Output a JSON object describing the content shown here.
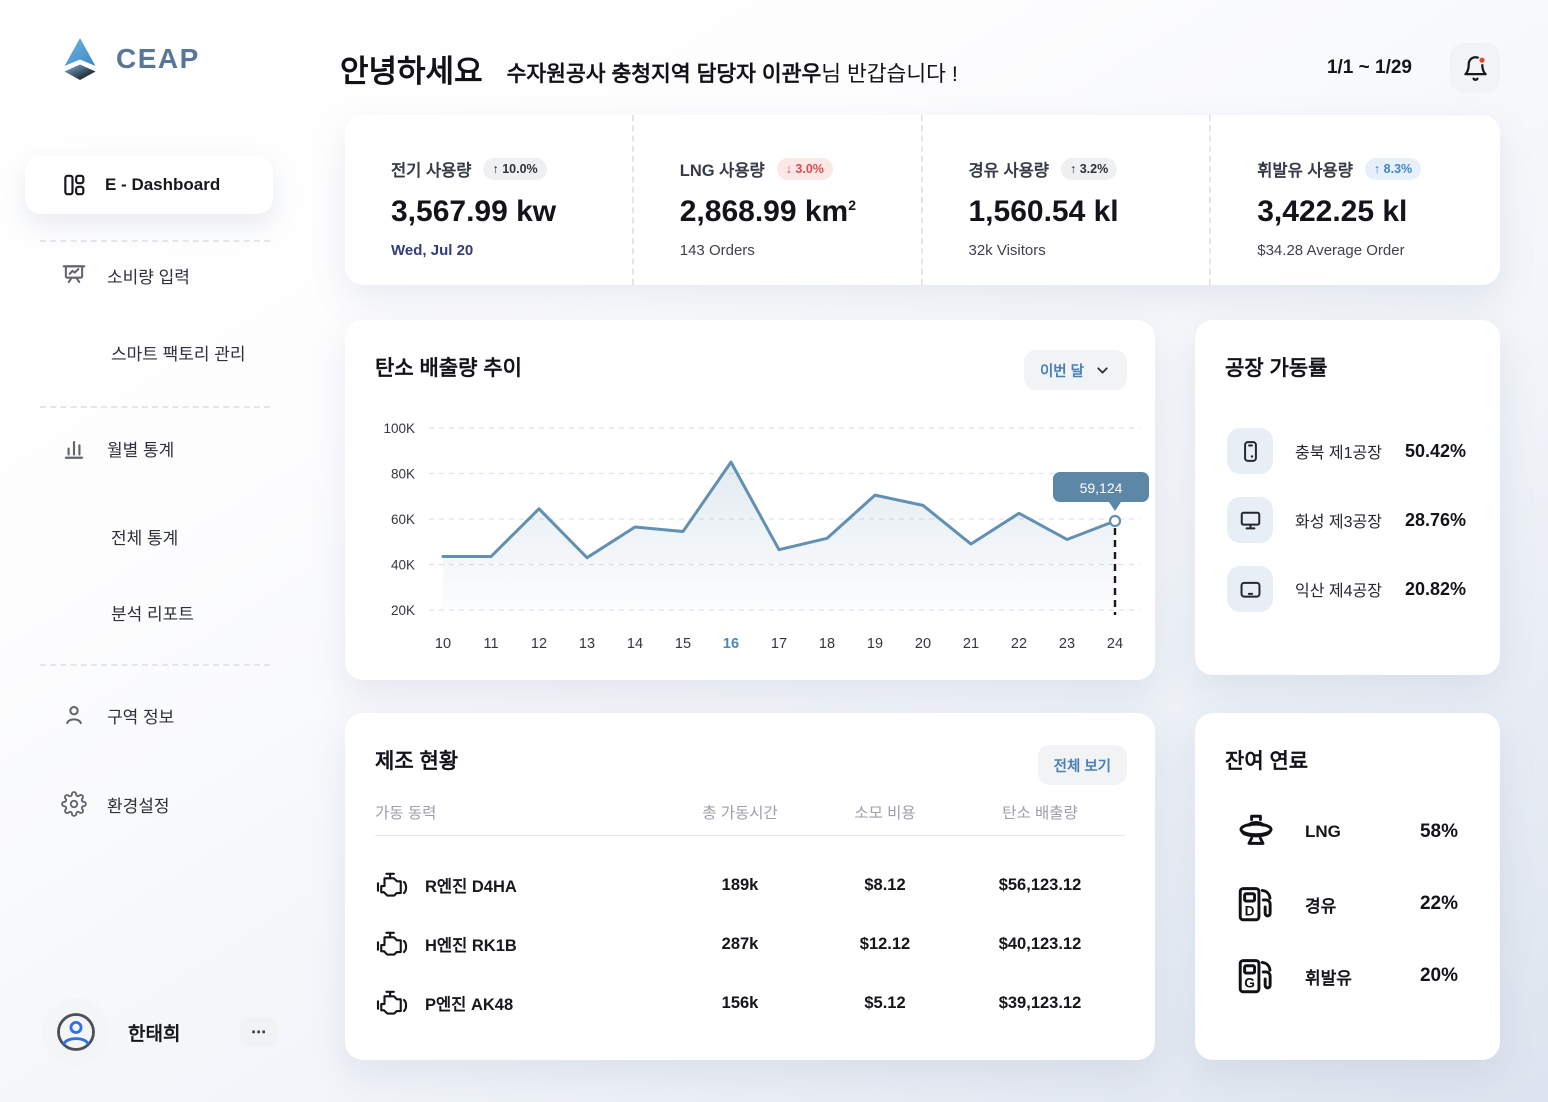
{
  "brand": {
    "name": "CEAP"
  },
  "header": {
    "greeting": "안녕하세요",
    "welcome_strong": "수자원공사 충청지역 담당자 이관우",
    "welcome_rest": "님 반갑습니다 !",
    "date_range": "1/1 ~ 1/29"
  },
  "sidebar": {
    "items": [
      {
        "label": "E - Dashboard",
        "icon": "dashboard-icon",
        "active": true
      },
      {
        "label": "소비량 입력",
        "icon": "presentation-chart-icon"
      },
      {
        "label": "스마트 팩토리 관리"
      },
      {
        "label": "월별 통계",
        "icon": "bar-chart-icon"
      },
      {
        "label": "전체 통계"
      },
      {
        "label": "분석 리포트"
      },
      {
        "label": "구역 정보",
        "icon": "person-icon"
      },
      {
        "label": "환경설정",
        "icon": "gear-icon"
      }
    ],
    "user": {
      "name": "한태희",
      "menu_label": "⋯"
    }
  },
  "stats": {
    "cards": [
      {
        "label": "전기 사용량",
        "badge": "↑ 10.0%",
        "value": "3,567.99 kw",
        "sub": "Wed, Jul 20"
      },
      {
        "label": "LNG 사용량",
        "badge": "↓ 3.0%",
        "value": "2,868.99 km",
        "unit_sup": "2",
        "sub": "143 Orders"
      },
      {
        "label": "경유 사용량",
        "badge": "↑ 3.2%",
        "value": "1,560.54 kl",
        "sub": "32k Visitors"
      },
      {
        "label": "휘발유 사용량",
        "badge": "↑ 8.3%",
        "value": "3,422.25 kl",
        "sub": "$34.28 Average Order"
      }
    ]
  },
  "chart_data": {
    "type": "line",
    "title": "탄소 배출량 추이",
    "period_selector": "이번 달",
    "x": [
      "10",
      "11",
      "12",
      "13",
      "14",
      "15",
      "16",
      "17",
      "18",
      "19",
      "20",
      "21",
      "22",
      "23",
      "24"
    ],
    "values": [
      43500,
      43500,
      64500,
      43000,
      56500,
      54500,
      85000,
      46500,
      51500,
      70500,
      66000,
      49000,
      62500,
      51000,
      59124
    ],
    "y_ticks": [
      "100K",
      "80K",
      "60K",
      "40K",
      "20K"
    ],
    "y_tick_values": [
      100000,
      80000,
      60000,
      40000,
      20000
    ],
    "ylim": [
      20000,
      100000
    ],
    "x_highlight": "16",
    "tooltip": {
      "x": "24",
      "label": "59,124"
    },
    "line_color": "#6290b2",
    "tooltip_bg": "#5d87a7",
    "grid_color": "#e1e1f3",
    "highlight_color": "#4e86c0",
    "grid": true,
    "legend": "none"
  },
  "factory": {
    "title": "공장 가동률",
    "rows": [
      {
        "icon": "smartphone-icon",
        "name": "충북 제1공장",
        "value": "50.42%"
      },
      {
        "icon": "monitor-icon",
        "name": "화성 제3공장",
        "value": "28.76%"
      },
      {
        "icon": "tablet-icon",
        "name": "익산 제4공장",
        "value": "20.82%"
      }
    ]
  },
  "manufacturing": {
    "title": "제조 현황",
    "view_all": "전체 보기",
    "columns": [
      "가동 동력",
      "총 가동시간",
      "소모 비용",
      "탄소 배출량"
    ],
    "rows": [
      {
        "name": "R엔진 D4HA",
        "hours": "189k",
        "cost": "$8.12",
        "emission": "$56,123.12"
      },
      {
        "name": "H엔진 RK1B",
        "hours": "287k",
        "cost": "$12.12",
        "emission": "$40,123.12"
      },
      {
        "name": "P엔진 AK48",
        "hours": "156k",
        "cost": "$5.12",
        "emission": "$39,123.12"
      }
    ]
  },
  "fuel": {
    "title": "잔여 연료",
    "rows": [
      {
        "icon": "gas-tank-icon",
        "letter": "",
        "name": "LNG",
        "value": "58%"
      },
      {
        "icon": "fuel-pump-diesel-icon",
        "letter": "D",
        "name": "경유",
        "value": "22%"
      },
      {
        "icon": "fuel-pump-gasoline-icon",
        "letter": "G",
        "name": "휘발유",
        "value": "20%"
      }
    ]
  }
}
